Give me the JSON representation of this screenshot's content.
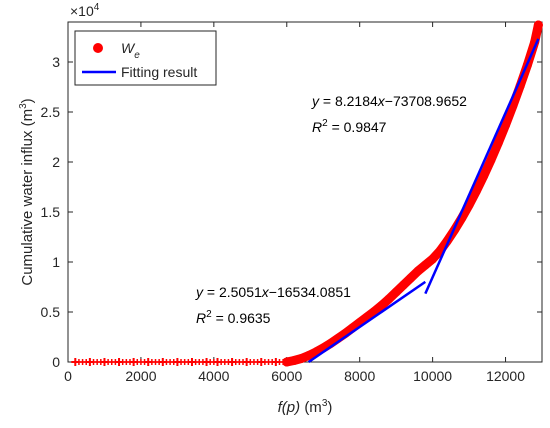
{
  "chart_data": {
    "type": "scatter",
    "title": "",
    "xlabel": {
      "prefix": "f",
      "arg": "(p)",
      "unit": "(m",
      "unit_sup": "3",
      "unit_close": ")"
    },
    "ylabel": {
      "text": "Cumulative water influx (m",
      "sup": "3",
      "close": ")"
    },
    "xlim": [
      0,
      13000
    ],
    "ylim": [
      0,
      34000
    ],
    "y_multiplier": {
      "base": "×10",
      "exp": "4"
    },
    "xticks": [
      0,
      2000,
      4000,
      6000,
      8000,
      10000,
      12000
    ],
    "xtick_labels": [
      "0",
      "2000",
      "4000",
      "6000",
      "8000",
      "10000",
      "12000"
    ],
    "yticks": [
      0,
      5000,
      10000,
      15000,
      20000,
      25000,
      30000
    ],
    "ytick_labels": [
      "0",
      "0.5",
      "1",
      "1.5",
      "2",
      "2.5",
      "3"
    ],
    "grid": false,
    "legend_position": "top-left",
    "series": [
      {
        "name": "W",
        "name_sub": "e",
        "kind": "scatter",
        "color": "#ff0000",
        "x": [
          200,
          600,
          1000,
          1400,
          1800,
          2200,
          2600,
          3000,
          3400,
          3800,
          4100,
          4500,
          4900,
          5300,
          5700,
          6000,
          6200,
          6400,
          6600,
          6800,
          7000,
          7200,
          7400,
          7600,
          7800,
          8000,
          8200,
          8400,
          8600,
          8800,
          9000,
          9200,
          9400,
          9600,
          9800,
          10000,
          10200,
          10400,
          10600,
          10800,
          11000,
          11200,
          11400,
          11600,
          11800,
          12000,
          12200,
          12400,
          12600,
          12800,
          12900
        ],
        "y": [
          0,
          0,
          0,
          0,
          0,
          0,
          0,
          0,
          0,
          0,
          0,
          0,
          0,
          0,
          0,
          0,
          150,
          350,
          650,
          1000,
          1400,
          1850,
          2350,
          2850,
          3400,
          3950,
          4500,
          5050,
          5650,
          6300,
          7000,
          7700,
          8400,
          9100,
          9700,
          10300,
          11100,
          12100,
          13200,
          14400,
          15700,
          17100,
          18600,
          20200,
          21900,
          23700,
          25600,
          27600,
          29700,
          32000,
          33700
        ]
      },
      {
        "name": "Fitting result",
        "kind": "line",
        "color": "#0000ff",
        "segments": [
          {
            "x": [
              6600,
              9800
            ],
            "y": [
              0,
              8015
            ]
          },
          {
            "x": [
              9800,
              12900
            ],
            "y": [
              6832,
              32310
            ]
          }
        ]
      }
    ],
    "annotations": [
      {
        "lines": [
          "y = 8.2184x−73708.9652",
          "R² = 0.9847"
        ]
      },
      {
        "lines": [
          "y = 2.5051x−16534.0851",
          "R² = 0.9635"
        ]
      }
    ]
  }
}
